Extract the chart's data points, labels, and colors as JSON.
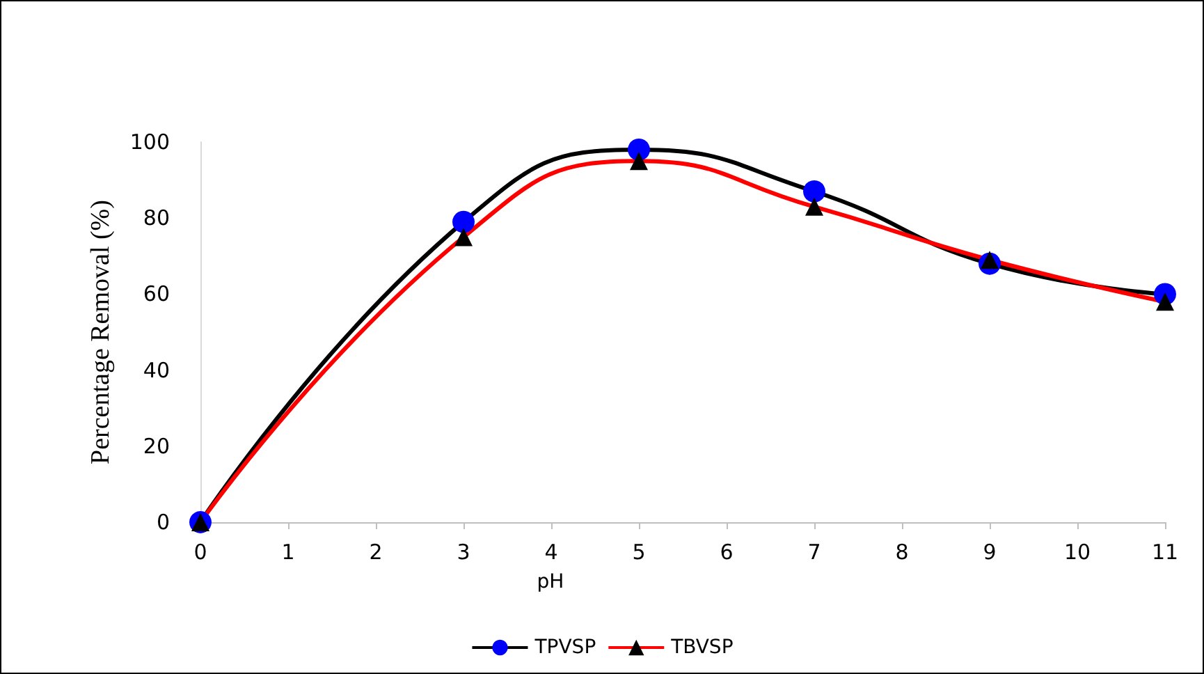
{
  "chart_data": {
    "type": "line",
    "xlabel": "pH",
    "ylabel": "Percentage Removal (%)",
    "xlim": [
      0,
      11
    ],
    "xticks": [
      0,
      1,
      2,
      3,
      4,
      5,
      6,
      7,
      8,
      9,
      10,
      11
    ],
    "ylim": [
      0,
      100
    ],
    "yticks": [
      0,
      20,
      40,
      60,
      80,
      100
    ],
    "grid": false,
    "legend": "bottom",
    "series": [
      {
        "name": "TPVSP",
        "color": "#000000",
        "colors": [
          "#0000ff",
          "#0000ff",
          "#0000ff",
          "#0000ff",
          "#0000ff",
          "#0000ff"
        ],
        "marker": "circle",
        "x": [
          0,
          3,
          5,
          7,
          9,
          11
        ],
        "values": [
          0,
          79,
          98,
          87,
          68,
          60
        ]
      },
      {
        "name": "TBVSP",
        "color": "#ff0000",
        "colors": [
          "#000000",
          "#000000",
          "#000000",
          "#000000",
          "#000000",
          "#000000"
        ],
        "marker": "triangle",
        "x": [
          0,
          3,
          5,
          7,
          9,
          11
        ],
        "values": [
          0,
          75,
          95,
          83,
          69,
          58
        ]
      }
    ]
  }
}
